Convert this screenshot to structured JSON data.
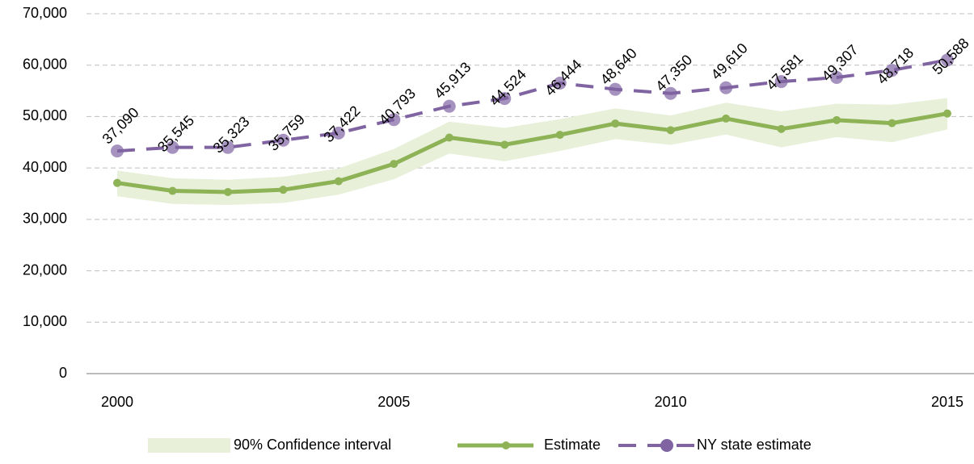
{
  "chart_data": {
    "type": "line",
    "x": [
      2000,
      2001,
      2002,
      2003,
      2004,
      2005,
      2006,
      2007,
      2008,
      2009,
      2010,
      2011,
      2012,
      2013,
      2014,
      2015
    ],
    "xlim": [
      2000,
      2015
    ],
    "xticks": [
      2000,
      2005,
      2010,
      2015
    ],
    "ylim": [
      0,
      70000
    ],
    "yticks": [
      0,
      {
        "value": 10000,
        "label": "10,000"
      },
      {
        "value": 20000,
        "label": "20,000"
      },
      {
        "value": 30000,
        "label": "30,000"
      },
      {
        "value": 40000,
        "label": "40,000"
      },
      {
        "value": 50000,
        "label": "50,000"
      },
      {
        "value": 60000,
        "label": "60,000"
      },
      {
        "value": 70000,
        "label": "70,000"
      }
    ],
    "grid": true,
    "legend": "bottom",
    "series": [
      {
        "name": "90% Confidence interval",
        "type": "band",
        "color": "#e8f0da",
        "lower": [
          34500,
          33000,
          32800,
          33200,
          34800,
          37800,
          42800,
          41300,
          43300,
          45600,
          44500,
          46500,
          44000,
          46000,
          45000,
          47500
        ],
        "upper": [
          39500,
          38000,
          37700,
          38300,
          39900,
          43700,
          49000,
          47800,
          49500,
          51600,
          50200,
          52700,
          51000,
          52500,
          52300,
          53600
        ]
      },
      {
        "name": "Estimate",
        "type": "line",
        "color": "#8db356",
        "values": [
          37090,
          35545,
          35323,
          35759,
          37422,
          40793,
          45913,
          44524,
          46444,
          48640,
          47350,
          49610,
          47581,
          49307,
          48718,
          50588
        ],
        "value_labels": [
          "37,090",
          "35,545",
          "35,323",
          "35,759",
          "37,422",
          "40,793",
          "45,913",
          "44,524",
          "46,444",
          "48,640",
          "47,350",
          "49,610",
          "47,581",
          "49,307",
          "48,718",
          "50,588"
        ]
      },
      {
        "name": "NY state estimate",
        "type": "dashed",
        "color": "#8064a2",
        "values": [
          43300,
          44000,
          44000,
          45400,
          46800,
          49400,
          52000,
          53500,
          56500,
          55300,
          54500,
          55600,
          56800,
          57600,
          59000,
          61000
        ]
      }
    ]
  }
}
